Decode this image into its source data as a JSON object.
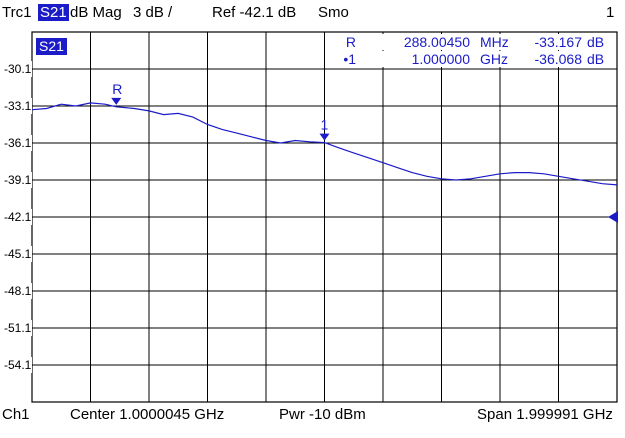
{
  "header": {
    "trace": "Trc1",
    "param": "S21",
    "format": "dB Mag",
    "scale": "3 dB /",
    "ref": "Ref -42.1 dB",
    "smo": "Smo",
    "channel_index": "1"
  },
  "trace_badge": "S21",
  "footer": {
    "channel": "Ch1",
    "center": "Center  1.0000045 GHz",
    "power": "Pwr  -10 dBm",
    "span": "Span  1.999991 GHz"
  },
  "marker_table": [
    {
      "id": "R",
      "freq": "288.00450",
      "unit": "MHz",
      "value": "-33.167",
      "vunit": "dB"
    },
    {
      "id": "•1",
      "freq": "1.000000",
      "unit": "GHz",
      "value": "-36.068",
      "vunit": "dB"
    }
  ],
  "colors": {
    "trace": "#1b1bc8",
    "grid": "#000000",
    "background": "#ffffff"
  },
  "chart_data": {
    "type": "line",
    "ytick_labels": [
      "-30.1",
      "-33.1",
      "-36.1",
      "-39.1",
      "-42.1",
      "-45.1",
      "-48.1",
      "-51.1",
      "-54.1"
    ],
    "ylim": [
      -57.1,
      -27.1
    ],
    "xlim": [
      9.5e-06,
      2.0
    ],
    "reference_level": -42.1,
    "grid": true,
    "series": [
      {
        "x": [
          9.5e-06,
          0.05,
          0.1,
          0.15,
          0.2,
          0.25,
          0.288,
          0.35,
          0.4,
          0.45,
          0.5,
          0.55,
          0.6,
          0.65,
          0.7,
          0.75,
          0.8,
          0.85,
          0.9,
          0.95,
          1.0,
          1.05,
          1.1,
          1.15,
          1.2,
          1.25,
          1.3,
          1.35,
          1.4,
          1.45,
          1.5,
          1.55,
          1.6,
          1.65,
          1.7,
          1.75,
          1.8,
          1.85,
          1.9,
          1.95,
          2.0
        ],
        "y": [
          -33.4,
          -33.3,
          -32.95,
          -33.1,
          -32.85,
          -32.95,
          -33.167,
          -33.3,
          -33.5,
          -33.8,
          -33.7,
          -34.0,
          -34.6,
          -35.0,
          -35.3,
          -35.6,
          -35.9,
          -36.1,
          -35.9,
          -36.0,
          -36.068,
          -36.5,
          -36.9,
          -37.3,
          -37.7,
          -38.1,
          -38.5,
          -38.8,
          -39.0,
          -39.1,
          -39.0,
          -38.8,
          -38.6,
          -38.5,
          -38.5,
          -38.6,
          -38.8,
          -39.0,
          -39.2,
          -39.4,
          -39.5
        ]
      }
    ],
    "markers": [
      {
        "label": "R",
        "x": 0.288,
        "y": -33.167
      },
      {
        "label": "1",
        "x": 1.0,
        "y": -36.068
      }
    ]
  }
}
